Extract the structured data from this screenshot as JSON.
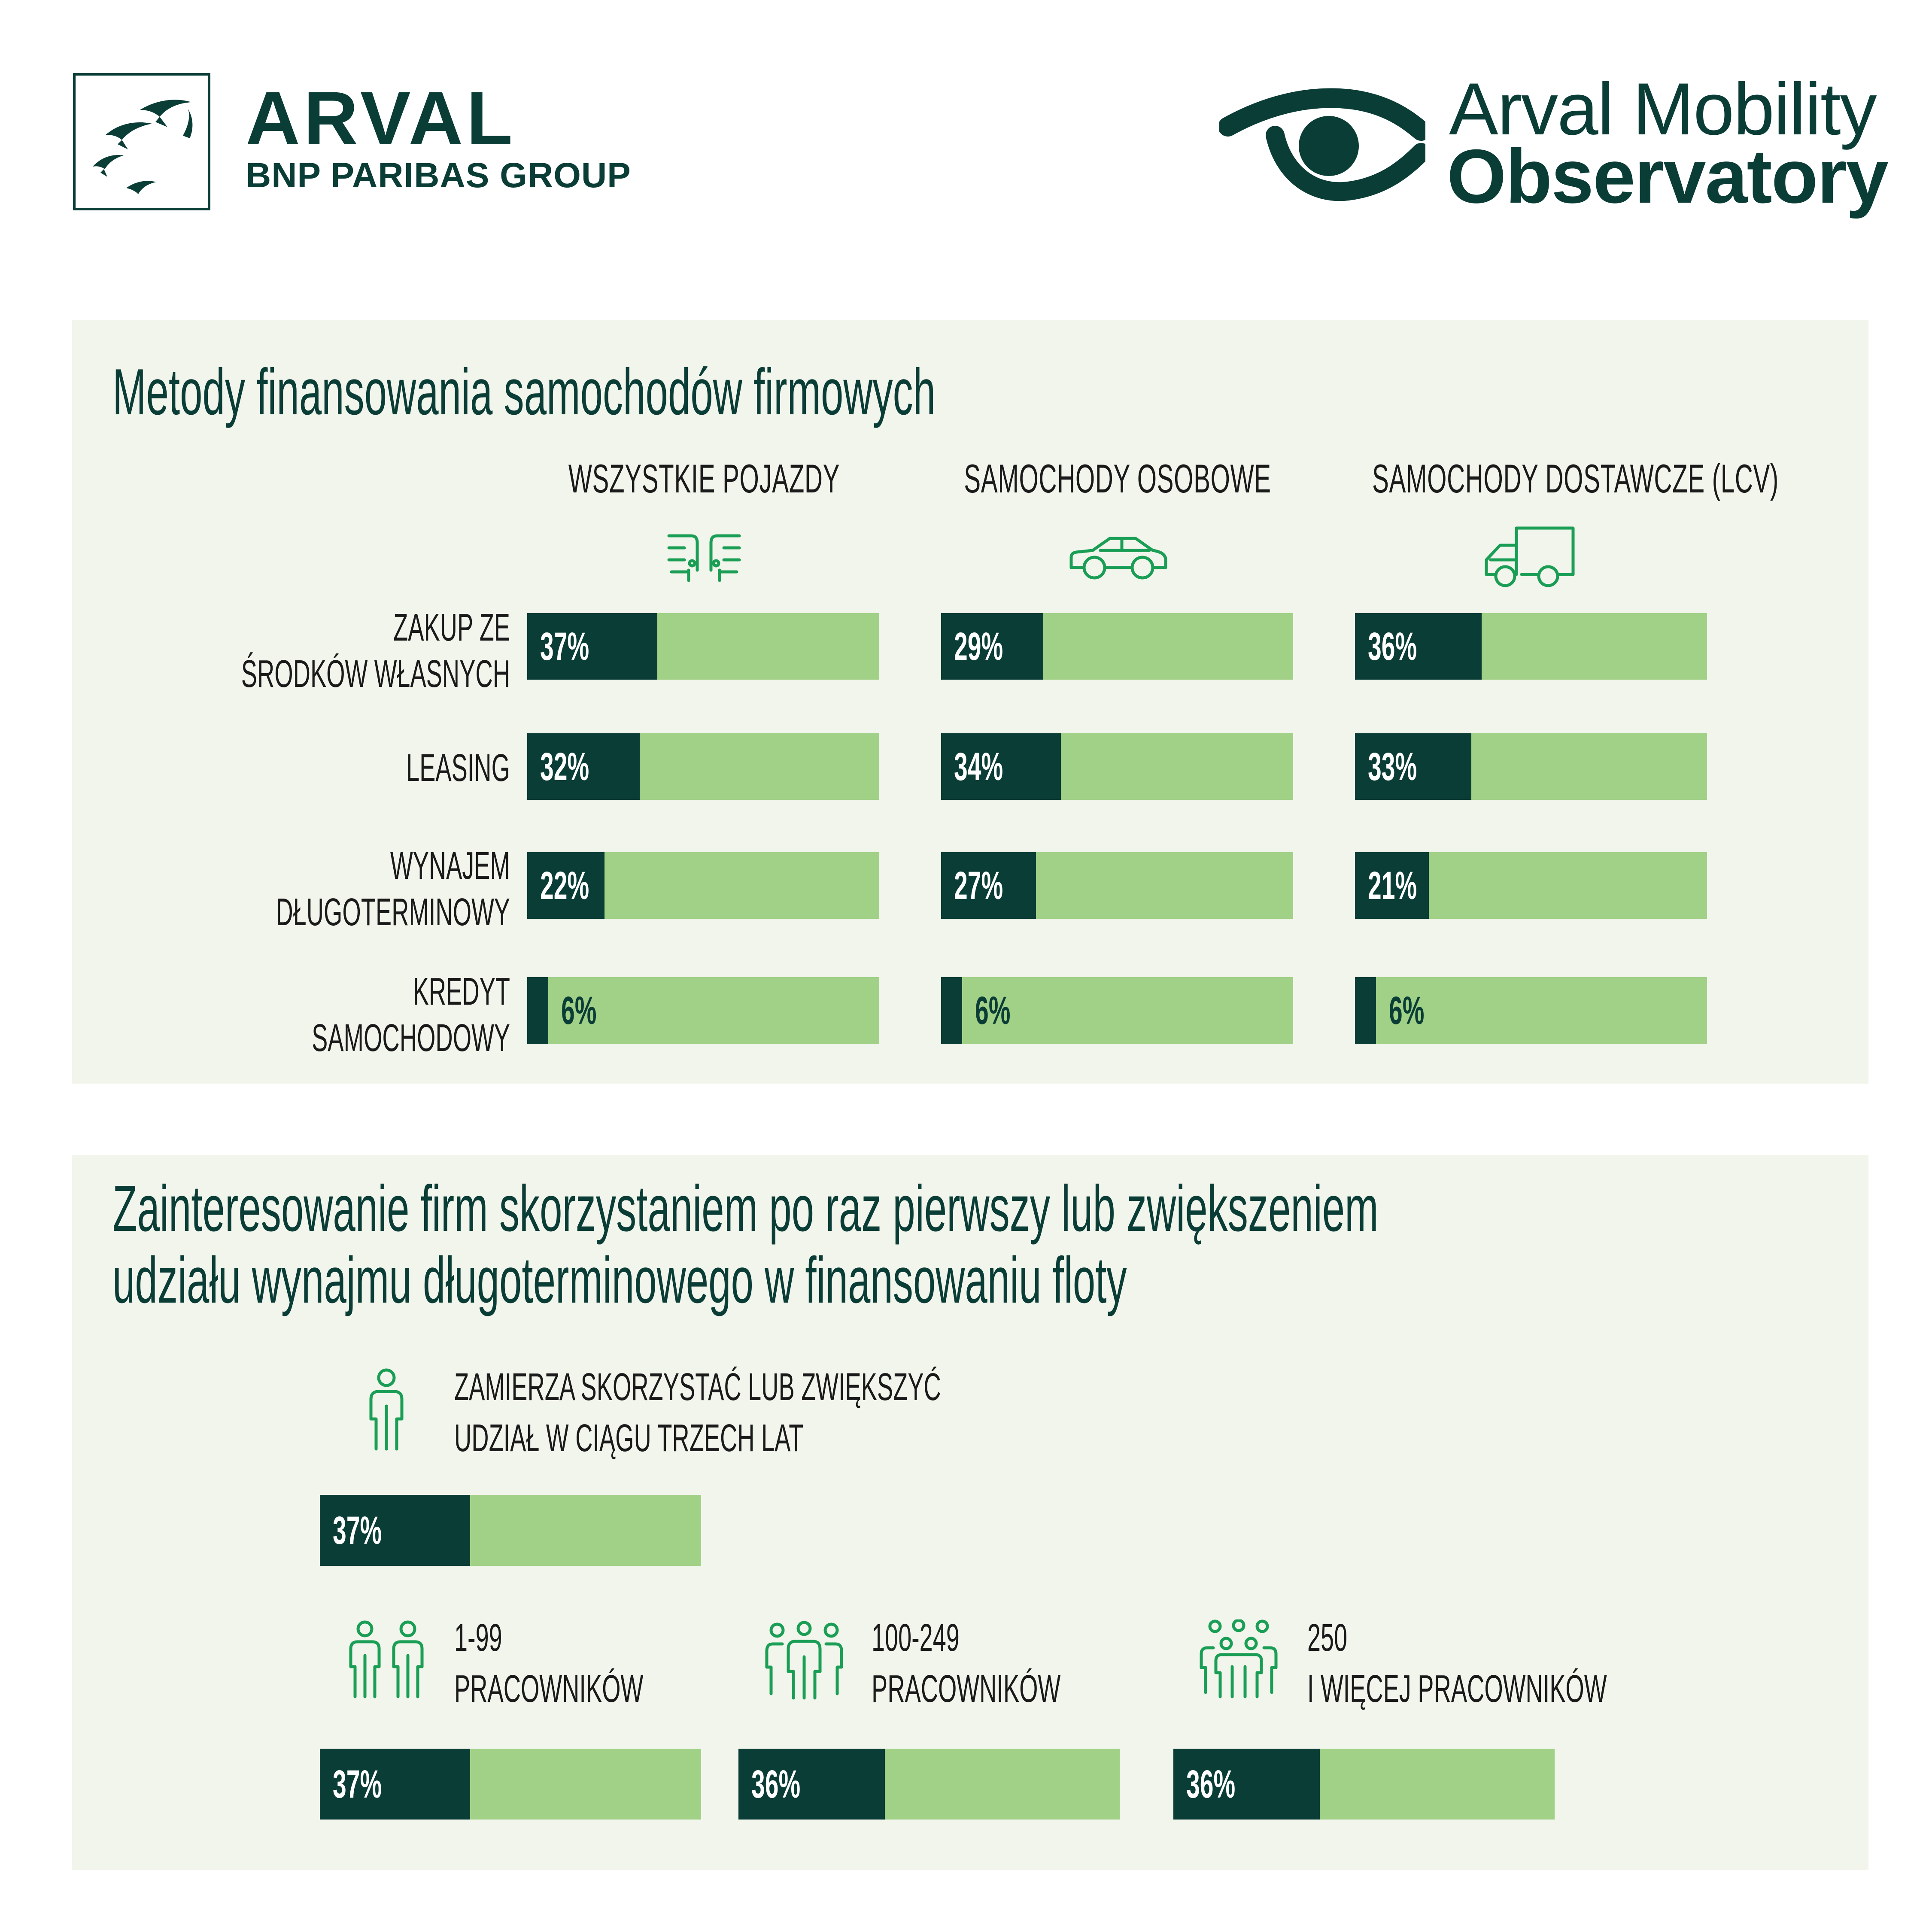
{
  "header": {
    "brand_name": "ARVAL",
    "brand_group": "BNP PARIBAS GROUP",
    "observatory_line1": "Arval Mobility",
    "observatory_line2": "Observatory"
  },
  "colors": {
    "dark": "#0b3d37",
    "light_bar": "#a1d087",
    "panel": "#f2f5ec",
    "icon_green": "#1a9e55"
  },
  "section1": {
    "title": "Metody finansowania samochodów firmowych",
    "columns": [
      {
        "label": "WSZYSTKIE POJAZDY",
        "icon": "cars-front-icon"
      },
      {
        "label": "SAMOCHODY OSOBOWE",
        "icon": "car-icon"
      },
      {
        "label": "SAMOCHODY DOSTAWCZE (LCV)",
        "icon": "delivery-truck-icon"
      }
    ],
    "rows": [
      {
        "label_lines": [
          "ZAKUP ZE",
          "ŚRODKÓW WŁASNYCH"
        ]
      },
      {
        "label_lines": [
          "LEASING"
        ]
      },
      {
        "label_lines": [
          "WYNAJEM",
          "DŁUGOTERMINOWY"
        ]
      },
      {
        "label_lines": [
          "KREDYT",
          "SAMOCHODOWY"
        ]
      }
    ]
  },
  "section2": {
    "title_line1": "Zainteresowanie firm skorzystaniem po raz pierwszy lub zwiększeniem",
    "title_line2": "udziału wynajmu długoterminowego w finansowaniu floty",
    "overall": {
      "label_line1": "ZAMIERZA SKORZYSTAĆ LUB ZWIĘKSZYĆ",
      "label_line2": "UDZIAŁ W CIĄGU TRZECH LAT",
      "icon": "person-icon"
    },
    "groups": [
      {
        "label_line1": "1-99",
        "label_line2": "PRACOWNIKÓW",
        "icon": "two-people-icon"
      },
      {
        "label_line1": "100-249",
        "label_line2": "PRACOWNIKÓW",
        "icon": "three-people-icon"
      },
      {
        "label_line1": "250",
        "label_line2": "I WIĘCEJ PRACOWNIKÓW",
        "icon": "group-people-icon"
      }
    ]
  },
  "chart_data": [
    {
      "type": "bar",
      "title": "Metody finansowania samochodów firmowych",
      "categories": [
        "ZAKUP ZE ŚRODKÓW WŁASNYCH",
        "LEASING",
        "WYNAJEM DŁUGOTERMINOWY",
        "KREDYT SAMOCHODOWY"
      ],
      "series": [
        {
          "name": "WSZYSTKIE POJAZDY",
          "values": [
            37,
            32,
            22,
            6
          ],
          "labels": [
            "37%",
            "32%",
            "22%",
            "6%"
          ]
        },
        {
          "name": "SAMOCHODY OSOBOWE",
          "values": [
            29,
            34,
            27,
            6
          ],
          "labels": [
            "29%",
            "34%",
            "27%",
            "6%"
          ]
        },
        {
          "name": "SAMOCHODY DOSTAWCZE (LCV)",
          "values": [
            36,
            33,
            21,
            6
          ],
          "labels": [
            "36%",
            "33%",
            "21%",
            "6%"
          ]
        }
      ],
      "ylim": [
        0,
        100
      ]
    },
    {
      "type": "bar",
      "title": "Zainteresowanie firm skorzystaniem po raz pierwszy lub zwiększeniem udziału wynajmu długoterminowego w finansowaniu floty",
      "categories": [
        "ZAMIERZA SKORZYSTAĆ LUB ZWIĘKSZYĆ UDZIAŁ W CIĄGU TRZECH LAT",
        "1-99 PRACOWNIKÓW",
        "100-249 PRACOWNIKÓW",
        "250 I WIĘCEJ PRACOWNIKÓW"
      ],
      "values": [
        37,
        37,
        36,
        36
      ],
      "labels": [
        "37%",
        "37%",
        "36%",
        "36%"
      ],
      "ylim": [
        0,
        100
      ]
    }
  ]
}
